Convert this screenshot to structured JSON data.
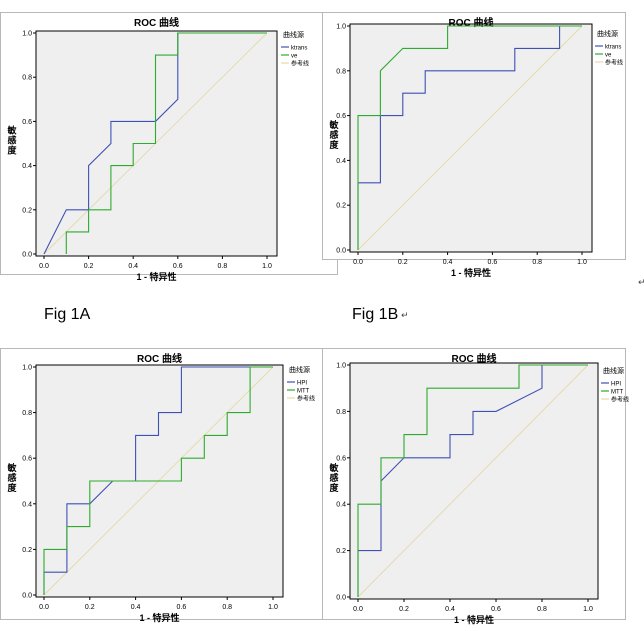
{
  "figure_labels": [
    "Fig 1A",
    "Fig 1B"
  ],
  "return_mark": "↵",
  "colors": {
    "plot_bg": "#efefef",
    "blue": "#3f51b5",
    "green": "#2eab2e",
    "reference": "#e5d9a8"
  },
  "chart_data": [
    {
      "type": "line",
      "title": "ROC 曲线",
      "xlabel": "1 - 特异性",
      "ylabel": "敏感度",
      "xlim": [
        0,
        1
      ],
      "ylim": [
        0,
        1
      ],
      "ticks": [
        "0.0",
        "0.2",
        "0.4",
        "0.6",
        "0.8",
        "1.0"
      ],
      "legend_title": "曲线源",
      "series": [
        {
          "name": "ktrans",
          "color": "blue",
          "points": [
            [
              0,
              0
            ],
            [
              0.1,
              0.2
            ],
            [
              0.2,
              0.2
            ],
            [
              0.2,
              0.4
            ],
            [
              0.3,
              0.5
            ],
            [
              0.3,
              0.6
            ],
            [
              0.5,
              0.6
            ],
            [
              0.6,
              0.7
            ],
            [
              0.6,
              1
            ],
            [
              1,
              1
            ]
          ]
        },
        {
          "name": "ve",
          "color": "green",
          "points": [
            [
              0.1,
              0
            ],
            [
              0.1,
              0.1
            ],
            [
              0.2,
              0.1
            ],
            [
              0.2,
              0.2
            ],
            [
              0.3,
              0.2
            ],
            [
              0.3,
              0.4
            ],
            [
              0.4,
              0.4
            ],
            [
              0.4,
              0.5
            ],
            [
              0.5,
              0.5
            ],
            [
              0.5,
              0.9
            ],
            [
              0.6,
              0.9
            ],
            [
              0.6,
              1
            ],
            [
              1,
              1
            ]
          ]
        },
        {
          "name": "参考线",
          "color": "reference",
          "points": [
            [
              0,
              0
            ],
            [
              1,
              1
            ]
          ]
        }
      ]
    },
    {
      "type": "line",
      "title": "ROC 曲线",
      "xlabel": "1 - 特异性",
      "ylabel": "敏感度",
      "xlim": [
        0,
        1
      ],
      "ylim": [
        0,
        1
      ],
      "ticks": [
        "0.0",
        "0.2",
        "0.4",
        "0.6",
        "0.8",
        "1.0"
      ],
      "legend_title": "曲线源",
      "series": [
        {
          "name": "ktrans",
          "color": "blue",
          "points": [
            [
              0,
              0
            ],
            [
              0,
              0.3
            ],
            [
              0.1,
              0.3
            ],
            [
              0.1,
              0.6
            ],
            [
              0.2,
              0.6
            ],
            [
              0.2,
              0.7
            ],
            [
              0.3,
              0.7
            ],
            [
              0.3,
              0.8
            ],
            [
              0.7,
              0.8
            ],
            [
              0.7,
              0.9
            ],
            [
              0.9,
              0.9
            ],
            [
              0.9,
              1
            ],
            [
              1,
              1
            ]
          ]
        },
        {
          "name": "ve",
          "color": "green",
          "points": [
            [
              0,
              0
            ],
            [
              0,
              0.6
            ],
            [
              0.1,
              0.6
            ],
            [
              0.1,
              0.8
            ],
            [
              0.2,
              0.9
            ],
            [
              0.4,
              0.9
            ],
            [
              0.4,
              1
            ],
            [
              1,
              1
            ]
          ]
        },
        {
          "name": "参考线",
          "color": "reference",
          "points": [
            [
              0,
              0
            ],
            [
              1,
              1
            ]
          ]
        }
      ]
    },
    {
      "type": "line",
      "title": "ROC 曲线",
      "xlabel": "1 - 特异性",
      "ylabel": "敏感度",
      "xlim": [
        0,
        1
      ],
      "ylim": [
        0,
        1
      ],
      "ticks": [
        "0.0",
        "0.2",
        "0.4",
        "0.6",
        "0.8",
        "1.0"
      ],
      "legend_title": "曲线源",
      "series": [
        {
          "name": "HPI",
          "color": "blue",
          "points": [
            [
              0,
              0
            ],
            [
              0,
              0.1
            ],
            [
              0.1,
              0.1
            ],
            [
              0.1,
              0.4
            ],
            [
              0.2,
              0.4
            ],
            [
              0.3,
              0.5
            ],
            [
              0.4,
              0.5
            ],
            [
              0.4,
              0.7
            ],
            [
              0.5,
              0.7
            ],
            [
              0.5,
              0.8
            ],
            [
              0.6,
              0.8
            ],
            [
              0.6,
              1
            ],
            [
              1,
              1
            ]
          ]
        },
        {
          "name": "MTT",
          "color": "green",
          "points": [
            [
              0,
              0
            ],
            [
              0,
              0.2
            ],
            [
              0.1,
              0.2
            ],
            [
              0.1,
              0.3
            ],
            [
              0.2,
              0.3
            ],
            [
              0.2,
              0.5
            ],
            [
              0.6,
              0.5
            ],
            [
              0.6,
              0.6
            ],
            [
              0.7,
              0.6
            ],
            [
              0.7,
              0.7
            ],
            [
              0.8,
              0.7
            ],
            [
              0.8,
              0.8
            ],
            [
              0.9,
              0.8
            ],
            [
              0.9,
              1
            ],
            [
              1,
              1
            ]
          ]
        },
        {
          "name": "参考线",
          "color": "reference",
          "points": [
            [
              0,
              0
            ],
            [
              1,
              1
            ]
          ]
        }
      ]
    },
    {
      "type": "line",
      "title": "ROC 曲线",
      "xlabel": "1 - 特异性",
      "ylabel": "敏感度",
      "xlim": [
        0,
        1
      ],
      "ylim": [
        0,
        1
      ],
      "ticks": [
        "0.0",
        "0.2",
        "0.4",
        "0.6",
        "0.8",
        "1.0"
      ],
      "legend_title": "曲线源",
      "series": [
        {
          "name": "HPI",
          "color": "blue",
          "points": [
            [
              0,
              0
            ],
            [
              0,
              0.2
            ],
            [
              0.1,
              0.2
            ],
            [
              0.1,
              0.5
            ],
            [
              0.2,
              0.6
            ],
            [
              0.4,
              0.6
            ],
            [
              0.4,
              0.7
            ],
            [
              0.5,
              0.7
            ],
            [
              0.5,
              0.8
            ],
            [
              0.6,
              0.8
            ],
            [
              0.8,
              0.9
            ],
            [
              0.8,
              1
            ],
            [
              1,
              1
            ]
          ]
        },
        {
          "name": "MTT",
          "color": "green",
          "points": [
            [
              0,
              0
            ],
            [
              0,
              0.4
            ],
            [
              0.1,
              0.4
            ],
            [
              0.1,
              0.6
            ],
            [
              0.2,
              0.6
            ],
            [
              0.2,
              0.7
            ],
            [
              0.3,
              0.7
            ],
            [
              0.3,
              0.9
            ],
            [
              0.7,
              0.9
            ],
            [
              0.7,
              1
            ],
            [
              1,
              1
            ]
          ]
        },
        {
          "name": "参考线",
          "color": "reference",
          "points": [
            [
              0,
              0
            ],
            [
              1,
              1
            ]
          ]
        }
      ]
    }
  ]
}
